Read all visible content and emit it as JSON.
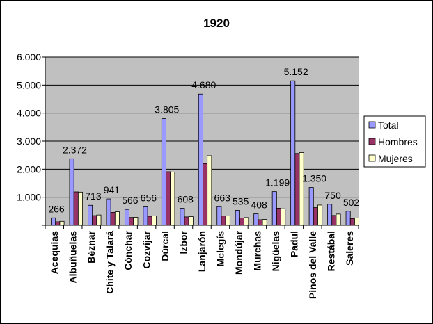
{
  "chart_data": {
    "type": "bar",
    "title": "1920",
    "xlabel": "",
    "ylabel": "",
    "ylim": [
      0,
      6000
    ],
    "yticks": [
      0,
      1000,
      2000,
      3000,
      4000,
      5000,
      6000
    ],
    "ytick_labels": [
      "",
      "1.000",
      "2.000",
      "3.000",
      "4.000",
      "5.000",
      "6.000"
    ],
    "grid": true,
    "legend_position": "right",
    "plot_background": "#c0c0c0",
    "categories": [
      "Acequias",
      "Albuñuelas",
      "Béznar",
      "Chite y Talará",
      "Cónchar",
      "Cozvíjar",
      "Dúrcal",
      "Izbor",
      "Lanjarón",
      "Melegís",
      "Mondújar",
      "Murchas",
      "Nigüelas",
      "Padul",
      "Pinos del Valle",
      "Restábal",
      "Saleres"
    ],
    "series": [
      {
        "name": "Total",
        "color": "#9999ff",
        "values": [
          266,
          2372,
          713,
          941,
          566,
          656,
          3805,
          608,
          4680,
          663,
          535,
          408,
          1199,
          5152,
          1350,
          750,
          502
        ]
      },
      {
        "name": "Hombres",
        "color": "#993366",
        "values": [
          125,
          1190,
          345,
          460,
          280,
          320,
          1910,
          300,
          2200,
          330,
          260,
          200,
          610,
          2560,
          630,
          350,
          240
        ]
      },
      {
        "name": "Mujeres",
        "color": "#ffffcc",
        "values": [
          141,
          1182,
          368,
          481,
          286,
          336,
          1895,
          308,
          2480,
          333,
          275,
          208,
          589,
          2592,
          720,
          400,
          262
        ]
      }
    ],
    "data_labels": [
      "266",
      "2.372",
      "713",
      "941",
      "566",
      "656",
      "3.805",
      "608",
      "4.680",
      "663",
      "535",
      "408",
      "1.199",
      "5.152",
      "1.350",
      "750",
      "502"
    ]
  }
}
